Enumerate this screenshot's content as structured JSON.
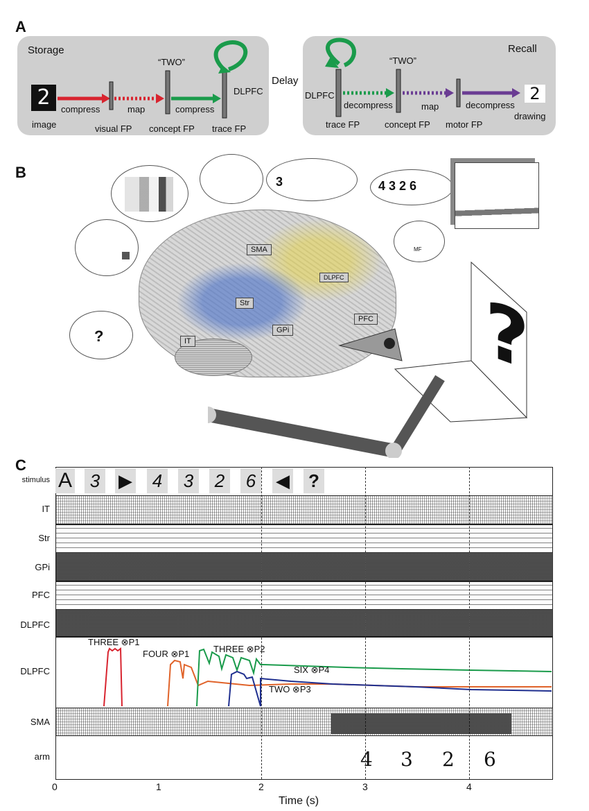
{
  "panels": {
    "a": "A",
    "b": "B",
    "c": "C"
  },
  "panel_a": {
    "storage_title": "Storage",
    "recall_title": "Recall",
    "delay": "Delay",
    "storage": {
      "compress1": "compress",
      "map": "map",
      "compress2": "compress",
      "two": "“TWO”",
      "dlpfc": "DLPFC",
      "image": "image",
      "visual_fp": "visual FP",
      "concept_fp": "concept FP",
      "trace_fp": "trace FP"
    },
    "recall": {
      "dlpfc": "DLPFC",
      "decompress1": "decompress",
      "map": "map",
      "decompress2": "decompress",
      "two": "“TWO”",
      "trace_fp": "trace FP",
      "concept_fp": "concept FP",
      "motor_fp": "motor FP",
      "drawing": "drawing"
    },
    "digit_shown": "2",
    "colors": {
      "red": "#d8242f",
      "green": "#1a9b4b",
      "purple": "#6a3c93"
    }
  },
  "panel_b": {
    "regions": {
      "sma": "SMA",
      "dlpfc": "DLPFC",
      "str": "Str",
      "gpi": "GPi",
      "pfc": "PFC",
      "it": "IT"
    },
    "thought_3": "3",
    "thought_sequence": "4 3 2 6",
    "thought_mf": "MF",
    "thought_question": "?",
    "screen_symbol": "?"
  },
  "panel_c": {
    "stimuli": [
      "A",
      "3",
      "▶",
      "4",
      "3",
      "2",
      "6",
      "◀",
      "?"
    ],
    "row_labels": [
      "stimulus",
      "IT",
      "Str",
      "GPi",
      "PFC",
      "DLPFC",
      "DLPFC",
      "SMA",
      "arm"
    ],
    "trace_labels": [
      "THREE ⊗P1",
      "FOUR ⊗P1",
      "THREE ⊗P2",
      "SIX ⊗P4",
      "TWO ⊗P3"
    ],
    "arm_output": [
      "4",
      "3",
      "2",
      "6"
    ],
    "x_ticks": [
      "0",
      "1",
      "2",
      "3",
      "4"
    ],
    "x_label": "Time (s)",
    "colors": {
      "three_p1": "#d8242f",
      "four_p1": "#e0632a",
      "three_p2": "#1a9b4b",
      "six_p4": "#1a9b4b",
      "two_p3": "#1f2f8f"
    }
  }
}
